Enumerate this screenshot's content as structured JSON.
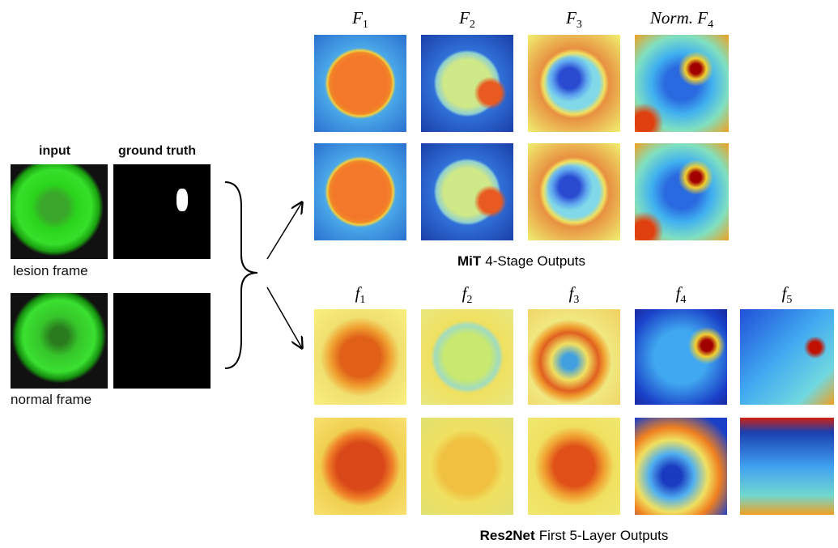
{
  "left": {
    "headers": [
      "input",
      "ground truth"
    ],
    "captions": [
      "lesion frame",
      "normal frame"
    ]
  },
  "mit": {
    "labels": [
      {
        "base": "F",
        "sub": "1"
      },
      {
        "base": "F",
        "sub": "2"
      },
      {
        "base": "F",
        "sub": "3"
      },
      {
        "prefix": "Norm.",
        "base": "F",
        "sub": "4"
      }
    ],
    "caption": {
      "bold": "MiT",
      "text": "4-Stage Outputs"
    }
  },
  "res2net": {
    "labels": [
      {
        "base": "f",
        "sub": "1"
      },
      {
        "base": "f",
        "sub": "2"
      },
      {
        "base": "f",
        "sub": "3"
      },
      {
        "base": "f",
        "sub": "4"
      },
      {
        "base": "f",
        "sub": "5"
      }
    ],
    "caption": {
      "bold": "Res2Net",
      "text": "First 5-Layer Outputs"
    }
  }
}
